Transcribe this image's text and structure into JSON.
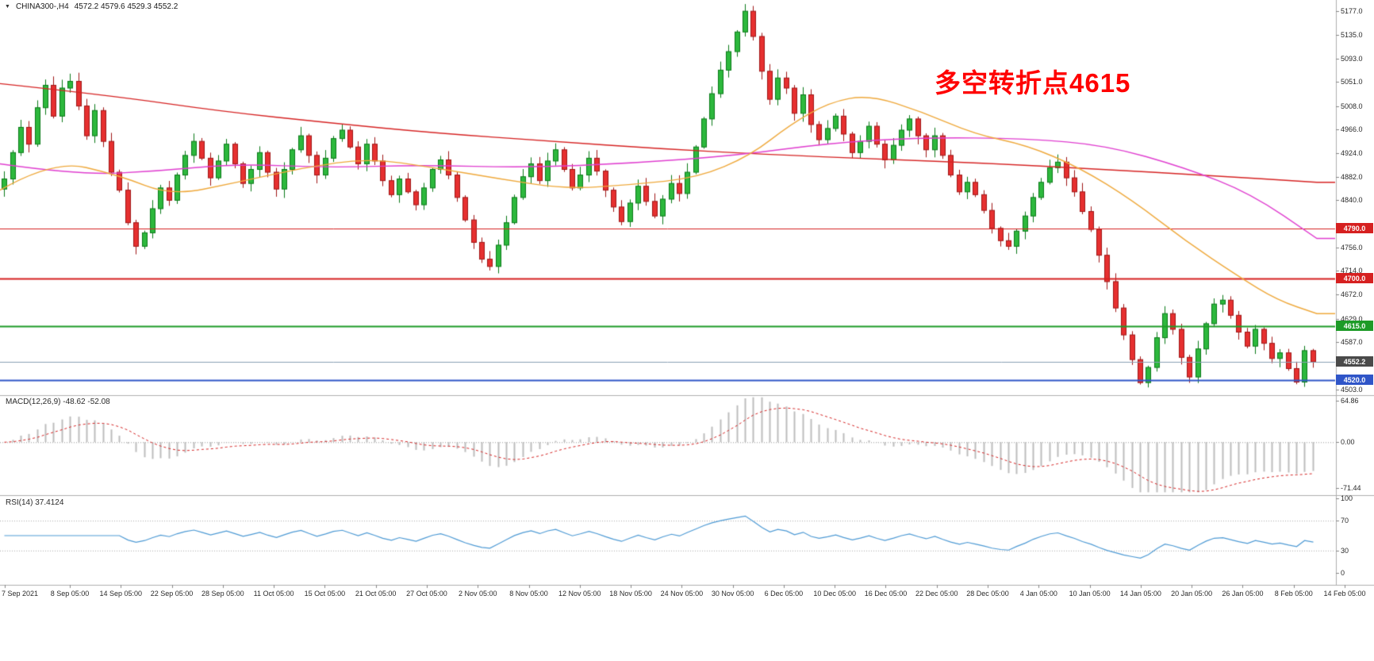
{
  "header": {
    "symbol": "CHINA300-,H4",
    "ohlc": "4572.2 4579.6 4529.3 4552.2"
  },
  "icons": {
    "dropdown_marker": "▼"
  },
  "annotation": {
    "text": "多空转折点4615",
    "color": "#ff0000"
  },
  "indicators": {
    "macd_label": "MACD(12,26,9) -48.62 -52.08",
    "rsi_label": "RSI(14) 37.4124"
  },
  "colors": {
    "up": "#2db83d",
    "up_stroke": "#0a7a18",
    "down": "#e63030",
    "down_stroke": "#a01616",
    "ma_long": "#d62424",
    "ma_mid": "#e03fd0",
    "ma_short": "#efa93c",
    "macd_hist": "#bdbdbd",
    "macd_signal": "#d62424",
    "rsi_line": "#4f9bd5",
    "divider": "#b0b0b0",
    "axis_text": "#2a2a2a"
  },
  "chart_data": {
    "type": "candlestick",
    "symbol": "CHINA300",
    "timeframe": "H4",
    "price_range": {
      "min": 4494,
      "max": 5197
    },
    "closes": [
      4878,
      4925,
      4970,
      4940,
      5005,
      5045,
      4990,
      5040,
      5052,
      5008,
      4955,
      5000,
      4945,
      4890,
      4858,
      4800,
      4758,
      4782,
      4825,
      4862,
      4840,
      4885,
      4920,
      4945,
      4915,
      4880,
      4910,
      4940,
      4905,
      4870,
      4895,
      4925,
      4890,
      4860,
      4895,
      4930,
      4955,
      4920,
      4885,
      4915,
      4950,
      4965,
      4935,
      4905,
      4940,
      4910,
      4875,
      4850,
      4878,
      4855,
      4832,
      4862,
      4895,
      4912,
      4885,
      4845,
      4805,
      4765,
      4735,
      4722,
      4760,
      4800,
      4845,
      4882,
      4905,
      4875,
      4910,
      4930,
      4895,
      4862,
      4885,
      4915,
      4892,
      4858,
      4828,
      4802,
      4835,
      4865,
      4838,
      4812,
      4842,
      4870,
      4852,
      4890,
      4935,
      4985,
      5030,
      5072,
      5105,
      5140,
      5177,
      5132,
      5070,
      5020,
      5058,
      5040,
      4995,
      5028,
      4975,
      4948,
      4968,
      4990,
      4958,
      4925,
      4945,
      4972,
      4940,
      4912,
      4938,
      4965,
      4985,
      4955,
      4930,
      4955,
      4920,
      4885,
      4855,
      4872,
      4850,
      4822,
      4790,
      4768,
      4758,
      4785,
      4812,
      4845,
      4872,
      4898,
      4908,
      4880,
      4855,
      4820,
      4788,
      4742,
      4695,
      4648,
      4600,
      4556,
      4515,
      4542,
      4595,
      4638,
      4610,
      4560,
      4525,
      4575,
      4620,
      4655,
      4662,
      4635,
      4605,
      4580,
      4610,
      4585,
      4558,
      4568,
      4540,
      4516,
      4572,
      4552
    ],
    "y_axis_labels": [
      "5177.0",
      "5135.0",
      "5093.0",
      "5051.0",
      "5008.0",
      "4966.0",
      "4924.0",
      "4882.0",
      "4840.0",
      "4756.0",
      "4714.0",
      "4672.0",
      "4629.0",
      "4587.0",
      "4503.0"
    ],
    "price_badges": [
      {
        "text": "4790.0",
        "value": 4790,
        "bg": "#d62020"
      },
      {
        "text": "4700.0",
        "value": 4700,
        "bg": "#d62020"
      },
      {
        "text": "4615.0",
        "value": 4615,
        "bg": "#1d9b27"
      },
      {
        "text": "4552.2",
        "value": 4552.2,
        "bg": "#4a4a4a"
      },
      {
        "text": "4520.0",
        "value": 4520,
        "bg": "#2f55c8"
      }
    ],
    "hlines": [
      {
        "price": 4790,
        "color": "#d62020",
        "width": 1
      },
      {
        "price": 4700,
        "color": "#d62020",
        "width": 2
      },
      {
        "price": 4615,
        "color": "#1d9b27",
        "width": 2
      },
      {
        "price": 4552.2,
        "color": "#8aa0b4",
        "width": 1
      },
      {
        "price": 4520,
        "color": "#2f55c8",
        "width": 2
      }
    ],
    "ma_lines": [
      {
        "name": "ma-long",
        "color": "#d62424",
        "points": [
          [
            0,
            5048
          ],
          [
            0.08,
            5028
          ],
          [
            0.17,
            4998
          ],
          [
            0.25,
            4978
          ],
          [
            0.33,
            4960
          ],
          [
            0.42,
            4945
          ],
          [
            0.5,
            4932
          ],
          [
            0.58,
            4922
          ],
          [
            0.67,
            4913
          ],
          [
            0.75,
            4906
          ],
          [
            0.83,
            4896
          ],
          [
            0.92,
            4884
          ],
          [
            1.0,
            4872
          ]
        ]
      },
      {
        "name": "ma-mid",
        "color": "#e03fd0",
        "points": [
          [
            0,
            4905
          ],
          [
            0.06,
            4885
          ],
          [
            0.12,
            4892
          ],
          [
            0.18,
            4905
          ],
          [
            0.25,
            4898
          ],
          [
            0.32,
            4903
          ],
          [
            0.4,
            4898
          ],
          [
            0.48,
            4906
          ],
          [
            0.56,
            4920
          ],
          [
            0.63,
            4942
          ],
          [
            0.7,
            4952
          ],
          [
            0.78,
            4950
          ],
          [
            0.84,
            4938
          ],
          [
            0.9,
            4898
          ],
          [
            0.95,
            4852
          ],
          [
            1.0,
            4772
          ]
        ]
      },
      {
        "name": "ma-short",
        "color": "#efa93c",
        "points": [
          [
            0,
            4858
          ],
          [
            0.04,
            4912
          ],
          [
            0.09,
            4885
          ],
          [
            0.13,
            4848
          ],
          [
            0.18,
            4872
          ],
          [
            0.23,
            4898
          ],
          [
            0.28,
            4915
          ],
          [
            0.33,
            4898
          ],
          [
            0.38,
            4878
          ],
          [
            0.43,
            4860
          ],
          [
            0.48,
            4868
          ],
          [
            0.53,
            4880
          ],
          [
            0.57,
            4920
          ],
          [
            0.6,
            4975
          ],
          [
            0.63,
            5015
          ],
          [
            0.66,
            5028
          ],
          [
            0.7,
            4998
          ],
          [
            0.74,
            4958
          ],
          [
            0.78,
            4938
          ],
          [
            0.82,
            4898
          ],
          [
            0.86,
            4840
          ],
          [
            0.9,
            4768
          ],
          [
            0.94,
            4705
          ],
          [
            0.97,
            4662
          ],
          [
            1.0,
            4638
          ]
        ]
      }
    ],
    "x_labels": [
      "7 Sep 2021",
      "8 Sep 05:00",
      "14 Sep 05:00",
      "22 Sep 05:00",
      "28 Sep 05:00",
      "11 Oct 05:00",
      "15 Oct 05:00",
      "21 Oct 05:00",
      "27 Oct 05:00",
      "2 Nov 05:00",
      "8 Nov 05:00",
      "12 Nov 05:00",
      "18 Nov 05:00",
      "24 Nov 05:00",
      "30 Nov 05:00",
      "6 Dec 05:00",
      "10 Dec 05:00",
      "16 Dec 05:00",
      "22 Dec 05:00",
      "28 Dec 05:00",
      "4 Jan 05:00",
      "10 Jan 05:00",
      "14 Jan 05:00",
      "20 Jan 05:00",
      "26 Jan 05:00",
      "8 Feb 05:00",
      "14 Feb 05:00"
    ],
    "macd": {
      "params": "12,26,9",
      "value": -48.62,
      "signal": -52.08,
      "axis_labels": [
        "64.86",
        "0.00",
        "-71.44"
      ],
      "range": {
        "min": -80,
        "max": 72
      }
    },
    "rsi": {
      "period": 14,
      "value": 37.4124,
      "axis_labels": [
        "100",
        "70",
        "30",
        "0"
      ],
      "levels": [
        70,
        30
      ]
    }
  }
}
